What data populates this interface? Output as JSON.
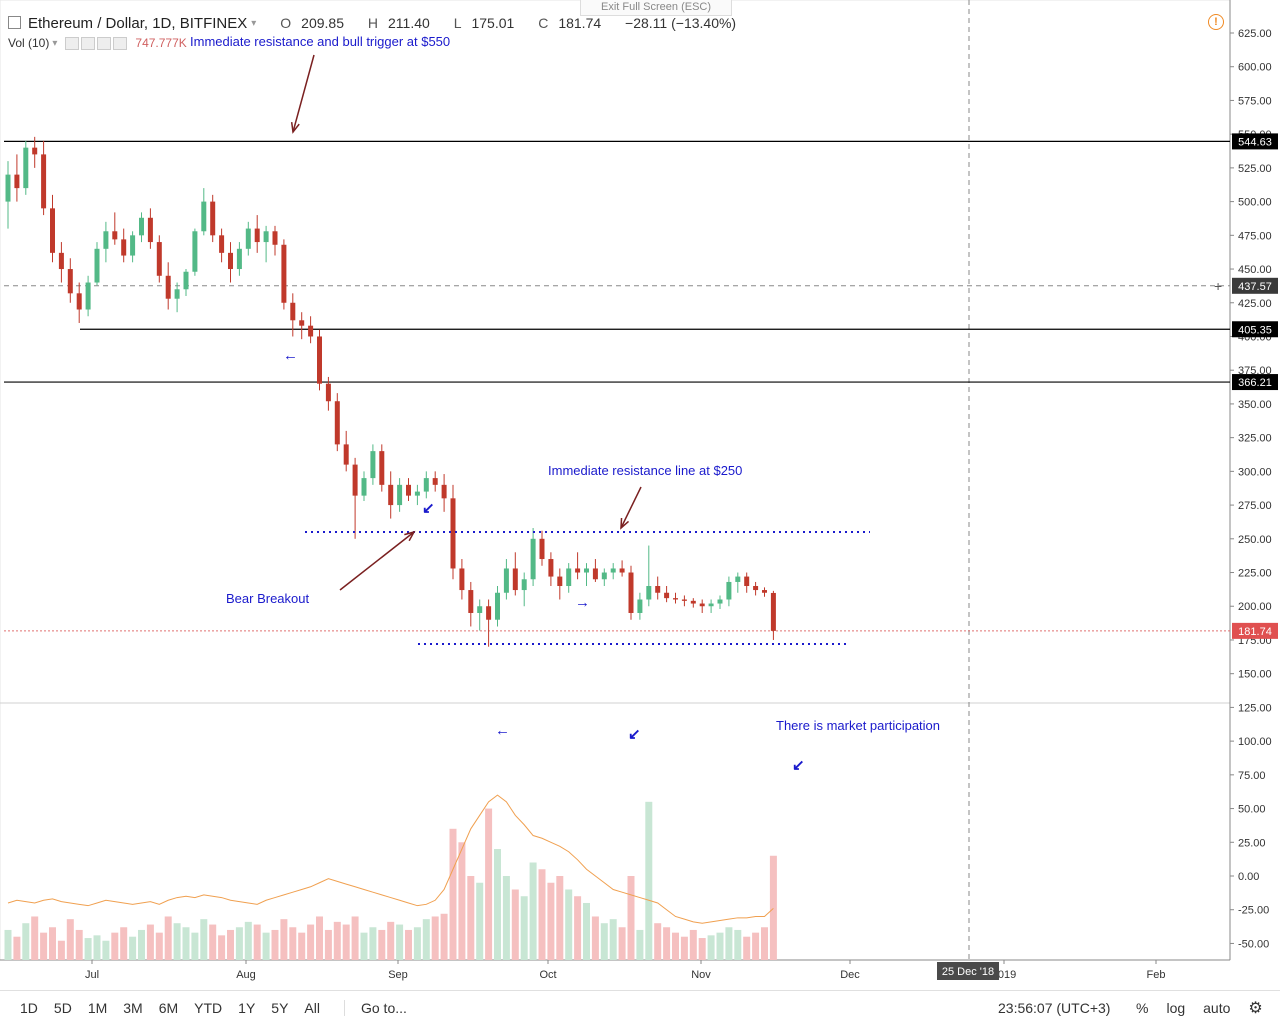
{
  "header": {
    "symbol": "Ethereum / Dollar, 1D, BITFINEX",
    "open_label": "O",
    "open": "209.85",
    "high_label": "H",
    "high": "211.40",
    "low_label": "L",
    "low": "175.01",
    "close_label": "C",
    "close": "181.74",
    "change": "−28.11 (−13.40%)",
    "vol_label": "Vol (10)",
    "vol_value": "747.777K",
    "exit_fullscreen": "Exit Full Screen (ESC)"
  },
  "colors": {
    "up": "#53b987",
    "down": "#c0392b",
    "up_vol": "#c8e6d4",
    "down_vol": "#f5c0c0",
    "annotation": "#1a1acc",
    "arrow": "#7a2020",
    "ma": "#f0a050"
  },
  "chart_data": {
    "type": "candlestick",
    "title": "Ethereum / Dollar, 1D, BITFINEX",
    "x_axis_labels": [
      "Jul",
      "Aug",
      "Sep",
      "Oct",
      "Nov",
      "Dec",
      "2019",
      "Feb"
    ],
    "y_ticks": [
      625,
      600,
      575,
      550,
      525,
      500,
      475,
      450,
      425,
      400,
      375,
      350,
      325,
      300,
      275,
      250,
      225,
      200,
      175,
      150,
      125,
      100,
      75,
      50,
      25,
      0,
      -25,
      -50
    ],
    "y_tick_labels": [
      "625.00",
      "600.00",
      "575.00",
      "550.00",
      "525.00",
      "500.00",
      "475.00",
      "450.00",
      "425.00",
      "400.00",
      "375.00",
      "350.00",
      "325.00",
      "300.00",
      "275.00",
      "250.00",
      "225.00",
      "200.00",
      "175.00",
      "150.00",
      "125.00",
      "100.00",
      "75.00",
      "50.00",
      "25.00",
      "0.00",
      "-25.00",
      "-50.00"
    ],
    "ylim": [
      -62,
      640
    ],
    "price_series": [
      [
        500,
        530,
        480,
        520
      ],
      [
        520,
        535,
        500,
        510
      ],
      [
        510,
        545,
        505,
        540
      ],
      [
        540,
        548,
        525,
        535
      ],
      [
        535,
        545,
        490,
        495
      ],
      [
        495,
        505,
        455,
        462
      ],
      [
        462,
        470,
        440,
        450
      ],
      [
        450,
        458,
        425,
        432
      ],
      [
        432,
        440,
        410,
        420
      ],
      [
        420,
        445,
        415,
        440
      ],
      [
        440,
        470,
        438,
        465
      ],
      [
        465,
        485,
        455,
        478
      ],
      [
        478,
        492,
        468,
        472
      ],
      [
        472,
        480,
        455,
        460
      ],
      [
        460,
        478,
        455,
        475
      ],
      [
        475,
        492,
        470,
        488
      ],
      [
        488,
        495,
        465,
        470
      ],
      [
        470,
        475,
        440,
        445
      ],
      [
        445,
        455,
        420,
        428
      ],
      [
        428,
        440,
        418,
        435
      ],
      [
        435,
        450,
        430,
        448
      ],
      [
        448,
        480,
        445,
        478
      ],
      [
        478,
        510,
        475,
        500
      ],
      [
        500,
        505,
        470,
        475
      ],
      [
        475,
        480,
        455,
        462
      ],
      [
        462,
        470,
        440,
        450
      ],
      [
        450,
        470,
        445,
        465
      ],
      [
        465,
        485,
        460,
        480
      ],
      [
        480,
        490,
        462,
        470
      ],
      [
        470,
        482,
        455,
        478
      ],
      [
        478,
        482,
        460,
        468
      ],
      [
        468,
        472,
        420,
        425
      ],
      [
        425,
        432,
        400,
        412
      ],
      [
        412,
        418,
        398,
        408
      ],
      [
        408,
        415,
        395,
        400
      ],
      [
        400,
        405,
        360,
        365
      ],
      [
        365,
        370,
        345,
        352
      ],
      [
        352,
        358,
        315,
        320
      ],
      [
        320,
        330,
        300,
        305
      ],
      [
        305,
        310,
        250,
        282
      ],
      [
        282,
        300,
        278,
        295
      ],
      [
        295,
        320,
        290,
        315
      ],
      [
        315,
        320,
        285,
        290
      ],
      [
        290,
        300,
        265,
        275
      ],
      [
        275,
        295,
        270,
        290
      ],
      [
        290,
        295,
        278,
        282
      ],
      [
        282,
        290,
        275,
        285
      ],
      [
        285,
        300,
        280,
        295
      ],
      [
        295,
        300,
        285,
        290
      ],
      [
        290,
        298,
        270,
        280
      ],
      [
        280,
        290,
        220,
        228
      ],
      [
        228,
        235,
        205,
        212
      ],
      [
        212,
        218,
        185,
        195
      ],
      [
        195,
        205,
        182,
        200
      ],
      [
        200,
        205,
        170,
        190
      ],
      [
        190,
        215,
        185,
        210
      ],
      [
        210,
        235,
        205,
        228
      ],
      [
        228,
        240,
        208,
        212
      ],
      [
        212,
        225,
        200,
        220
      ],
      [
        220,
        258,
        215,
        250
      ],
      [
        250,
        256,
        230,
        235
      ],
      [
        235,
        240,
        215,
        222
      ],
      [
        222,
        228,
        205,
        215
      ],
      [
        215,
        232,
        210,
        228
      ],
      [
        228,
        240,
        220,
        225
      ],
      [
        225,
        232,
        215,
        228
      ],
      [
        228,
        235,
        218,
        220
      ],
      [
        220,
        228,
        215,
        225
      ],
      [
        225,
        232,
        220,
        228
      ],
      [
        228,
        234,
        222,
        225
      ],
      [
        225,
        230,
        190,
        195
      ],
      [
        195,
        210,
        190,
        205
      ],
      [
        205,
        245,
        200,
        215
      ],
      [
        215,
        222,
        205,
        210
      ],
      [
        210,
        215,
        203,
        206
      ],
      [
        206,
        210,
        202,
        205
      ],
      [
        205,
        208,
        200,
        204
      ],
      [
        204,
        206,
        199,
        202
      ],
      [
        202,
        205,
        195,
        200
      ],
      [
        200,
        205,
        195,
        202
      ],
      [
        202,
        208,
        198,
        205
      ],
      [
        205,
        222,
        200,
        218
      ],
      [
        218,
        225,
        210,
        222
      ],
      [
        222,
        225,
        210,
        215
      ],
      [
        215,
        218,
        208,
        212
      ],
      [
        212,
        214,
        207,
        210
      ],
      [
        209.85,
        211.4,
        175.01,
        181.74
      ]
    ],
    "volume_series": [
      20,
      15,
      25,
      30,
      18,
      22,
      12,
      28,
      20,
      14,
      16,
      12,
      18,
      22,
      15,
      20,
      24,
      18,
      30,
      25,
      22,
      18,
      28,
      24,
      16,
      20,
      22,
      26,
      24,
      18,
      20,
      28,
      22,
      18,
      24,
      30,
      20,
      26,
      24,
      30,
      18,
      22,
      20,
      26,
      24,
      20,
      22,
      28,
      30,
      32,
      95,
      85,
      60,
      55,
      110,
      80,
      60,
      50,
      45,
      70,
      65,
      55,
      60,
      50,
      45,
      40,
      30,
      25,
      28,
      22,
      60,
      20,
      115,
      25,
      22,
      18,
      15,
      20,
      14,
      16,
      18,
      22,
      20,
      15,
      18,
      22,
      75
    ],
    "ma_series": [
      -20,
      -18,
      -19,
      -20,
      -18,
      -17,
      -19,
      -20,
      -21,
      -22,
      -20,
      -18,
      -19,
      -20,
      -21,
      -20,
      -19,
      -21,
      -18,
      -16,
      -15,
      -16,
      -14,
      -15,
      -16,
      -18,
      -19,
      -20,
      -21,
      -18,
      -16,
      -14,
      -12,
      -10,
      -8,
      -5,
      -2,
      -4,
      -6,
      -8,
      -10,
      -12,
      -14,
      -16,
      -18,
      -20,
      -22,
      -21,
      -18,
      -10,
      5,
      20,
      35,
      45,
      55,
      60,
      55,
      45,
      38,
      30,
      28,
      25,
      22,
      18,
      12,
      5,
      0,
      -5,
      -10,
      -12,
      -14,
      -16,
      -18,
      -20,
      -25,
      -30,
      -32,
      -34,
      -35,
      -34,
      -33,
      -32,
      -31,
      -31,
      -30,
      -30,
      -24
    ],
    "levels": [
      {
        "value": 544.63,
        "label": "544.63",
        "style": "solid"
      },
      {
        "value": 437.57,
        "label": "437.57",
        "style": "dashed"
      },
      {
        "value": 405.35,
        "label": "405.35",
        "style": "solid"
      },
      {
        "value": 366.21,
        "label": "366.21",
        "style": "solid"
      },
      {
        "value": 181.74,
        "label": "181.74",
        "style": "price"
      }
    ],
    "dotted_levels": [
      255,
      172
    ],
    "annotations": [
      "Immediate resistance and bull trigger at $550",
      "Immediate resistance line at $250",
      "Bear Breakout",
      "There is market participation"
    ],
    "crosshair_date": "25 Dec '18"
  },
  "bottombar": {
    "timeframes": [
      "1D",
      "5D",
      "1M",
      "3M",
      "6M",
      "YTD",
      "1Y",
      "5Y",
      "All"
    ],
    "goto": "Go to...",
    "clock": "23:56:07 (UTC+3)",
    "percent": "%",
    "log": "log",
    "auto": "auto"
  }
}
